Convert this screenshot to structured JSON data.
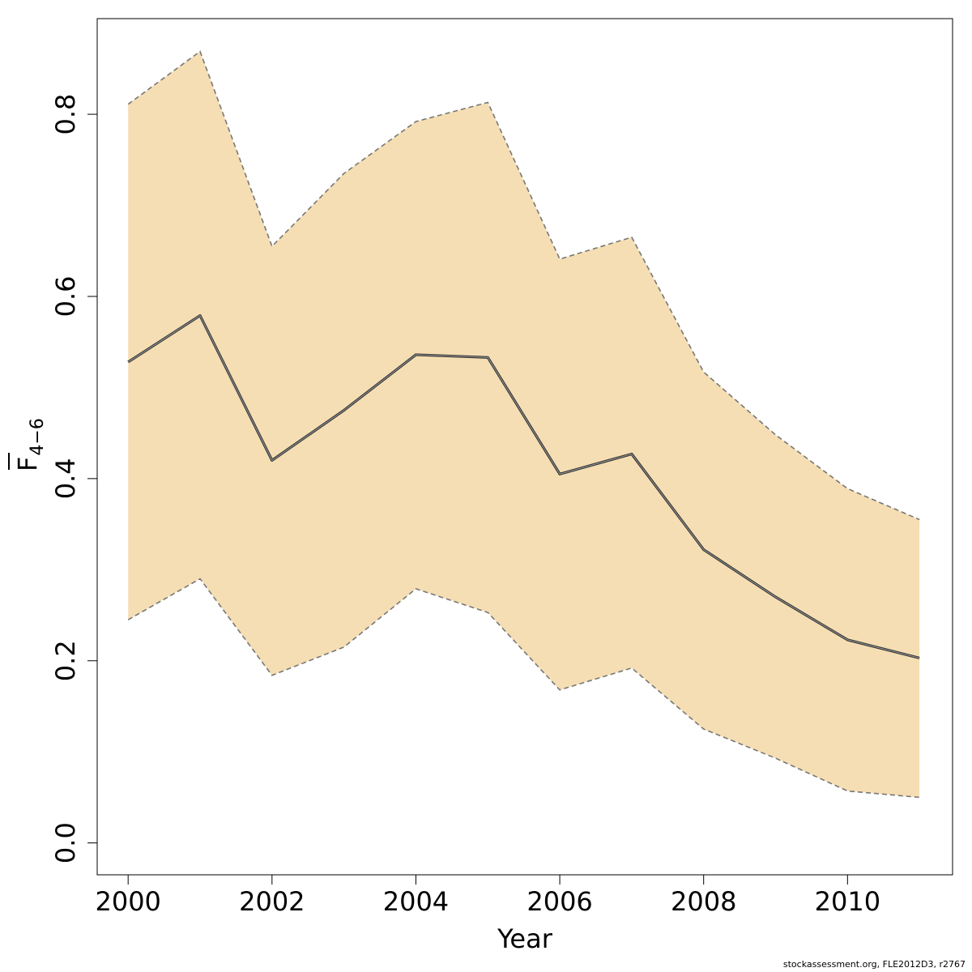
{
  "chart_data": {
    "type": "line",
    "xlabel": "Year",
    "ylabel": "F",
    "ylabel_subscript": "4−6",
    "x": [
      2000,
      2001,
      2002,
      2003,
      2004,
      2005,
      2006,
      2007,
      2008,
      2009,
      2010,
      2011
    ],
    "series": [
      {
        "values": [
          0.528,
          0.579,
          0.42,
          0.475,
          0.536,
          0.533,
          0.405,
          0.427,
          0.322,
          0.27,
          0.223,
          0.203
        ],
        "style": "solid",
        "color": "#555555"
      }
    ],
    "band": {
      "lower": [
        0.245,
        0.29,
        0.184,
        0.215,
        0.279,
        0.253,
        0.168,
        0.192,
        0.125,
        0.093,
        0.057,
        0.05
      ],
      "upper": [
        0.811,
        0.869,
        0.655,
        0.735,
        0.792,
        0.813,
        0.641,
        0.665,
        0.517,
        0.448,
        0.389,
        0.355
      ],
      "fill_color": "#F5DEB3",
      "edge_style": "dashed",
      "edge_color": "#777777"
    },
    "xlim": [
      1999.57,
      2011.46
    ],
    "ylim": [
      -0.035,
      0.905
    ],
    "xticks": [
      2000,
      2002,
      2004,
      2006,
      2008,
      2010
    ],
    "yticks": [
      0.0,
      0.2,
      0.4,
      0.6,
      0.8
    ],
    "ytick_labels": [
      "0.0",
      "0.2",
      "0.4",
      "0.6",
      "0.8"
    ],
    "grid": false
  },
  "footer": {
    "credit": "stockassessment.org, FLE2012D3, r2767"
  }
}
